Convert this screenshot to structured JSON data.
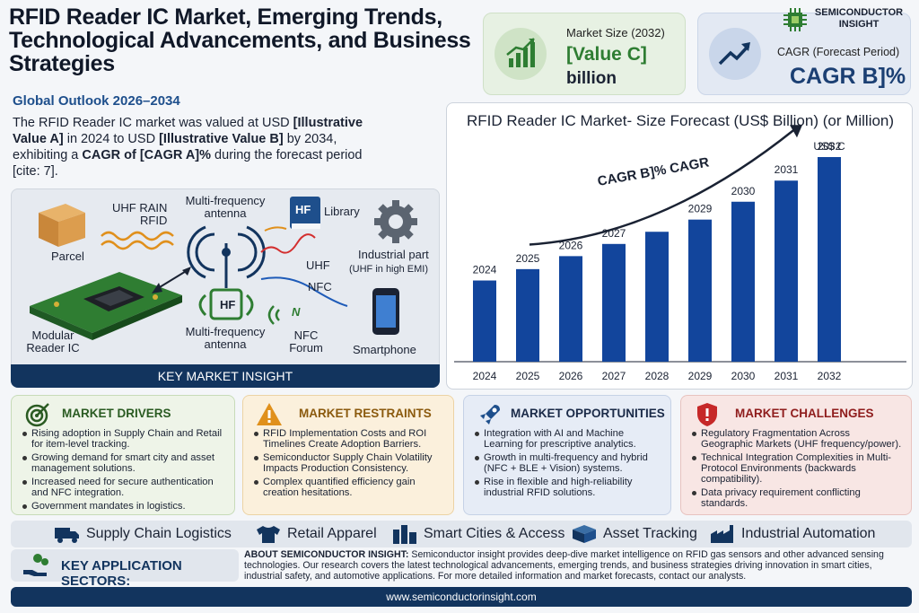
{
  "header": {
    "title": "RFID Reader IC Market, Emerging Trends, Technological Advancements, and Business Strategies",
    "subtitle": "Global Outlook 2026–2034",
    "summary_parts": {
      "p1": "The RFID Reader IC market was valued at USD ",
      "b1": "[Illustrative Value A]",
      "p2": " in 2024 to USD ",
      "b2": "[Illustrative Value B]",
      "p3": " by 2034, exhibiting a ",
      "b3": "CAGR of [CAGR A]%",
      "p4": " during the forecast period [cite: 7]."
    }
  },
  "kpis": {
    "market_size_label": "Market Size (2032)",
    "market_size_value": "[Value C]",
    "market_size_unit": "billion",
    "cagr_label": "CAGR (Forecast Period)",
    "cagr_value": "CAGR B]%"
  },
  "logo": {
    "line1": "SEMICONDUCTOR",
    "line2": "INSIGHT"
  },
  "diagram": {
    "parcel": "Parcel",
    "uhf_rain": "UHF RAIN",
    "rfid": "RFID",
    "multi_antenna_top": "Multi-frequency antenna",
    "book_badge": "HF",
    "library": "Library",
    "industrial": "Industrial part",
    "industrial_note": "(UHF in high EMI)",
    "uhf": "UHF",
    "nfc": "NFC",
    "hf": "HF",
    "modular": "Modular Reader IC",
    "multi_antenna_bottom": "Multi-frequency antenna",
    "nfc_forum": "NFC Forum",
    "nfc_logo": "N",
    "smartphone": "Smartphone",
    "insight_bar": "KEY MARKET INSIGHT"
  },
  "chart_data": {
    "type": "bar",
    "title": "RFID Reader IC Market- Size Forecast (US$ Billion) (or Million)",
    "categories": [
      "2024",
      "2025",
      "2026",
      "2027",
      "2028",
      "2029",
      "2030",
      "2031",
      "2032"
    ],
    "bar_labels": [
      "2024",
      "2025",
      "2026",
      "2027",
      "",
      "2029",
      "2030",
      "2031",
      "2032"
    ],
    "values": [
      1.0,
      1.14,
      1.3,
      1.45,
      1.6,
      1.75,
      1.97,
      2.23,
      2.52
    ],
    "top_label": "US$ C",
    "trend_label": "CAGR B]% CAGR",
    "bar_color": "#12459c"
  },
  "drivers": {
    "title": "MARKET DRIVERS",
    "items": [
      "Rising adoption in Supply Chain and Retail for item-level tracking.",
      "Growing demand for smart city and asset management solutions.",
      "Increased need for secure authentication and NFC integration.",
      "Government mandates in logistics."
    ]
  },
  "restraints": {
    "title": "MARKET RESTRAINTS",
    "items": [
      "RFID Implementation Costs and ROI Timelines Create Adoption Barriers.",
      "Semiconductor Supply Chain Volatility Impacts Production Consistency.",
      "Complex quantified efficiency gain creation hesitations."
    ]
  },
  "opportunities": {
    "title": "MARKET OPPORTUNITIES",
    "items": [
      "Integration with AI and Machine Learning for prescriptive analytics.",
      "Growth in multi-frequency and hybrid (NFC + BLE + Vision) systems.",
      "Rise in flexible and high-reliability industrial RFID solutions."
    ]
  },
  "challenges": {
    "title": "MARKET CHALLENGES",
    "items": [
      "Regulatory Fragmentation Across Geographic Markets (UHF frequency/power).",
      "Technical Integration Complexities in Multi-Protocol Environments (backwards compatibility).",
      "Data privacy requirement conflicting standards."
    ]
  },
  "sectors": {
    "s1": "Supply Chain Logistics",
    "s2": "Retail Apparel",
    "s3": "Smart Cities & Access",
    "s4": "Asset Tracking",
    "s5": "Industrial Automation"
  },
  "key_app_label": "KEY APPLICATION SECTORS:",
  "about": {
    "lead": "ABOUT SEMICONDUCTOR INSIGHT:",
    "text": " Semiconductor insight provides deep-dive market intelligence on RFID gas sensors and other advanced sensing technologies. Our research covers the latest technological advancements, emerging trends, and business strategies driving innovation in smart cities, industrial safety, and automotive applications. For more detailed information and market forecasts, contact our analysts."
  },
  "footer": {
    "url": "www.semiconductorinsight.com"
  },
  "colors": {
    "navy": "#12345e",
    "bar_blue": "#12459c",
    "green": "#2e7d32",
    "orange": "#e0901c",
    "red": "#c62828"
  }
}
